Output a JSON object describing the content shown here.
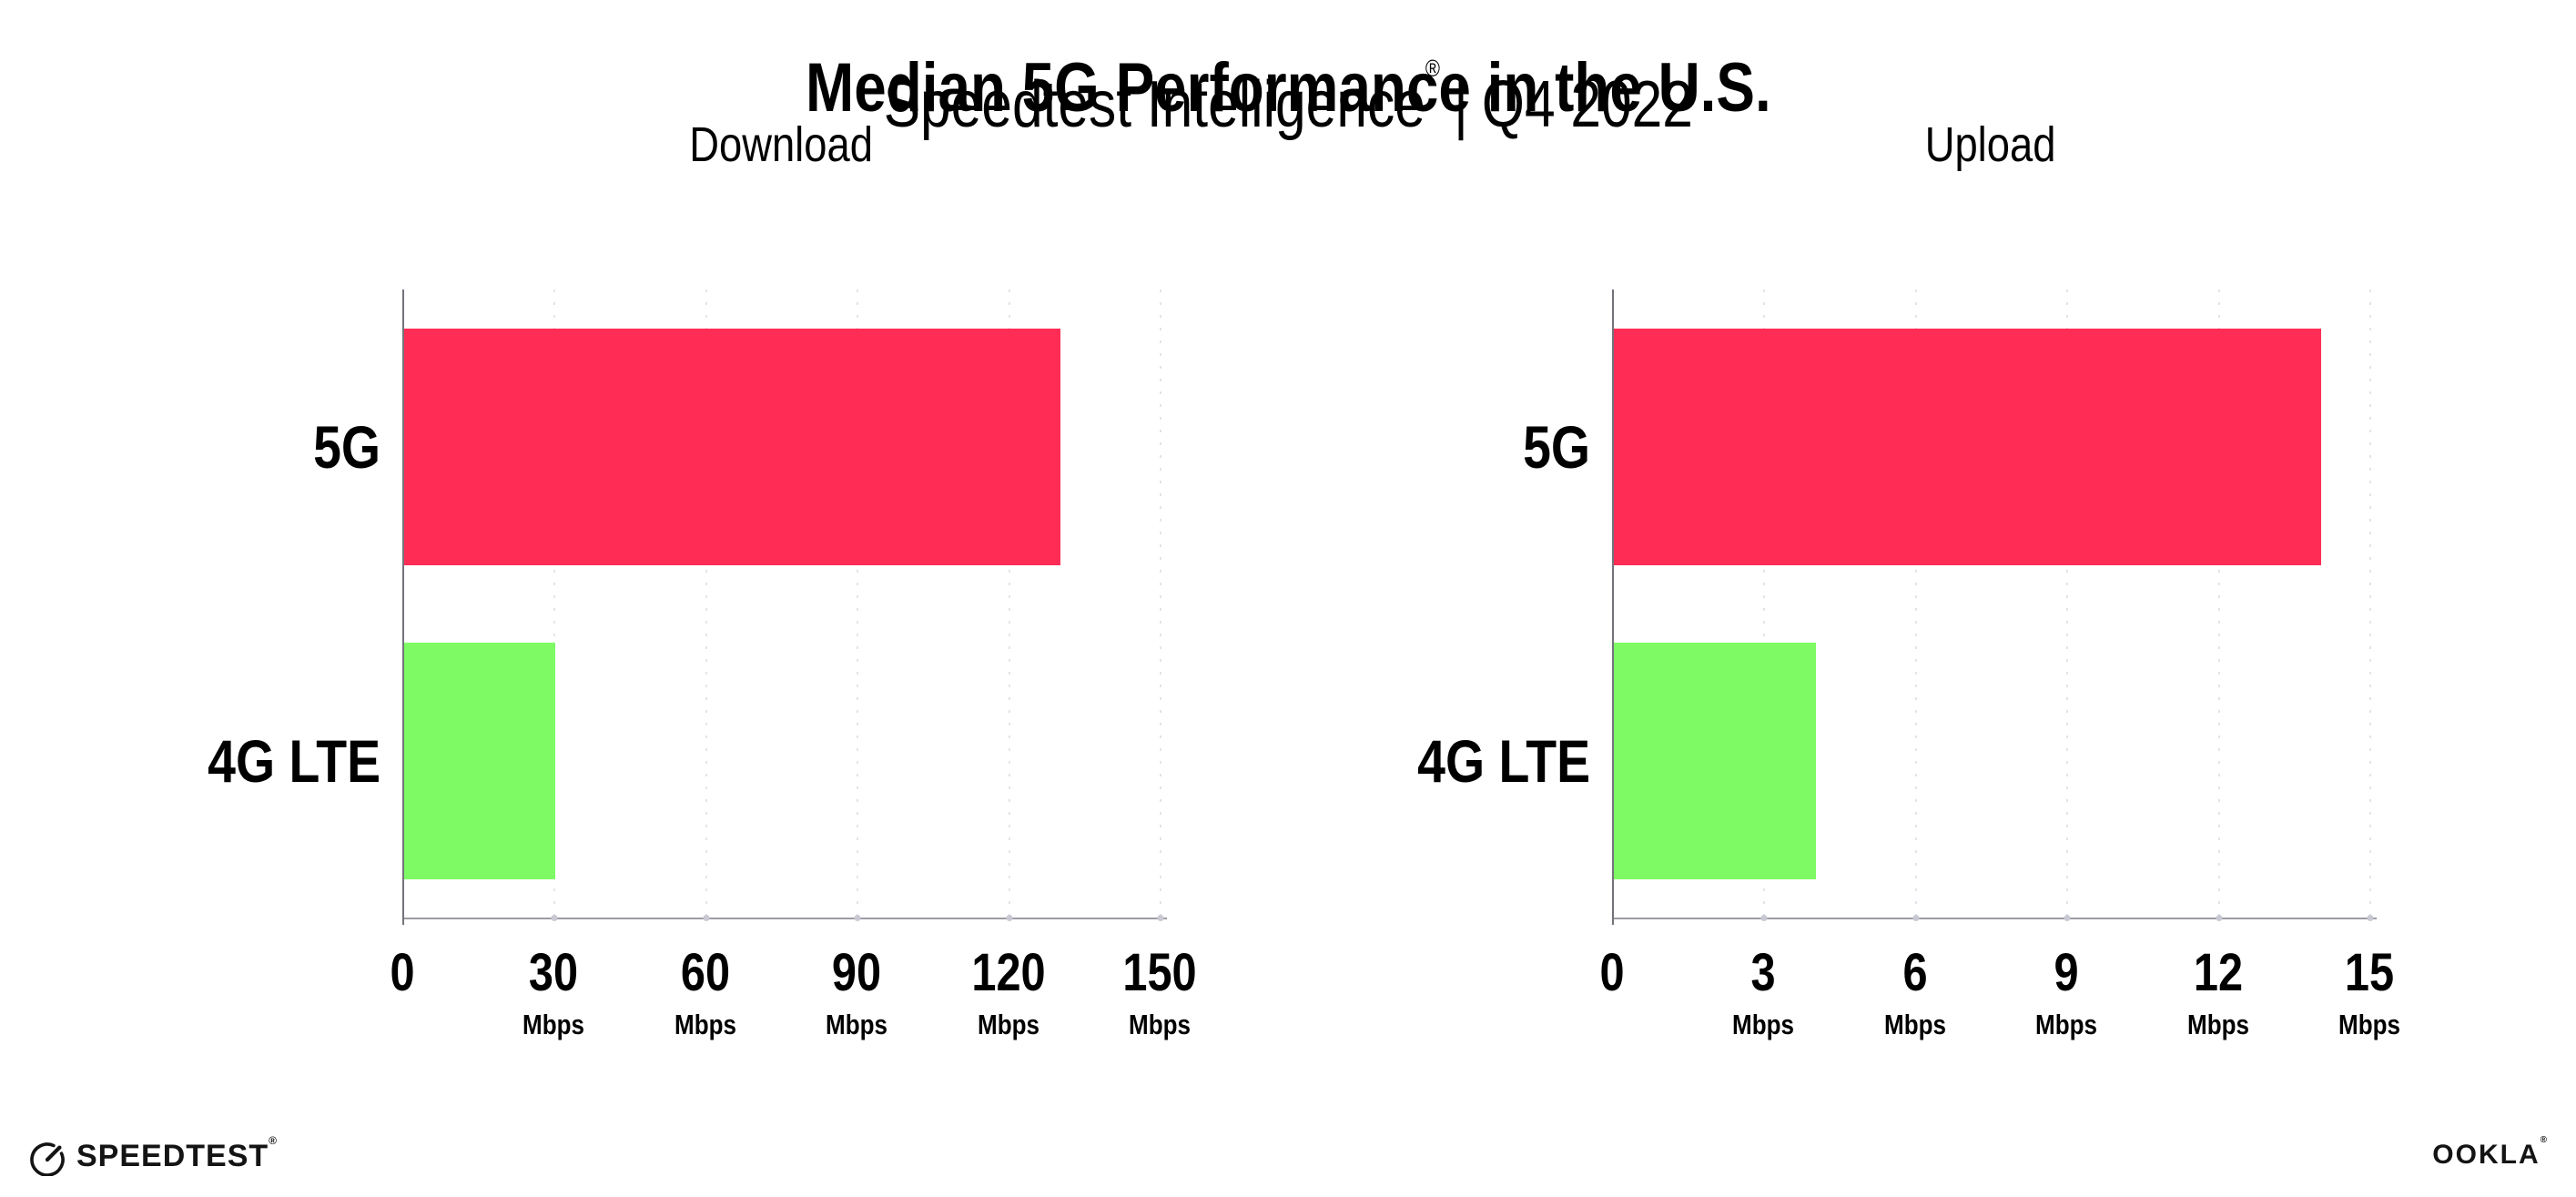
{
  "title": "Median 5G Performance in the U.S.",
  "subtitle": {
    "text": "Speedtest Intelligence",
    "registered_mark": "®",
    "divider": "|",
    "period": "Q4 2022"
  },
  "footer": {
    "speedtest_text": "SPEEDTEST",
    "speedtest_mark": "®",
    "ookla_text": "OOKLA",
    "ookla_mark": "®"
  },
  "colors": {
    "bar_5g": "#FF2D55",
    "bar_4g": "#7DFA64",
    "gridline": "#E3E3ED",
    "x_axis": "#9B9BA3",
    "y_axis": "#73737B"
  },
  "chart_data": [
    {
      "type": "bar",
      "orientation": "horizontal",
      "title": "Download",
      "categories": [
        "5G",
        "4G LTE"
      ],
      "values": [
        130,
        30
      ],
      "unit": "Mbps",
      "xlim": [
        0,
        150
      ],
      "xticks": [
        0,
        30,
        60,
        90,
        120,
        150
      ],
      "tick_unit_label": "Mbps",
      "bar_colors": [
        "#FF2D55",
        "#7DFA64"
      ],
      "grid": "dotted-vertical",
      "legend": "none"
    },
    {
      "type": "bar",
      "orientation": "horizontal",
      "title": "Upload",
      "categories": [
        "5G",
        "4G LTE"
      ],
      "values": [
        14,
        4
      ],
      "unit": "Mbps",
      "xlim": [
        0,
        15
      ],
      "xticks": [
        0,
        3,
        6,
        9,
        12,
        15
      ],
      "tick_unit_label": "Mbps",
      "bar_colors": [
        "#FF2D55",
        "#7DFA64"
      ],
      "grid": "dotted-vertical",
      "legend": "none"
    }
  ]
}
